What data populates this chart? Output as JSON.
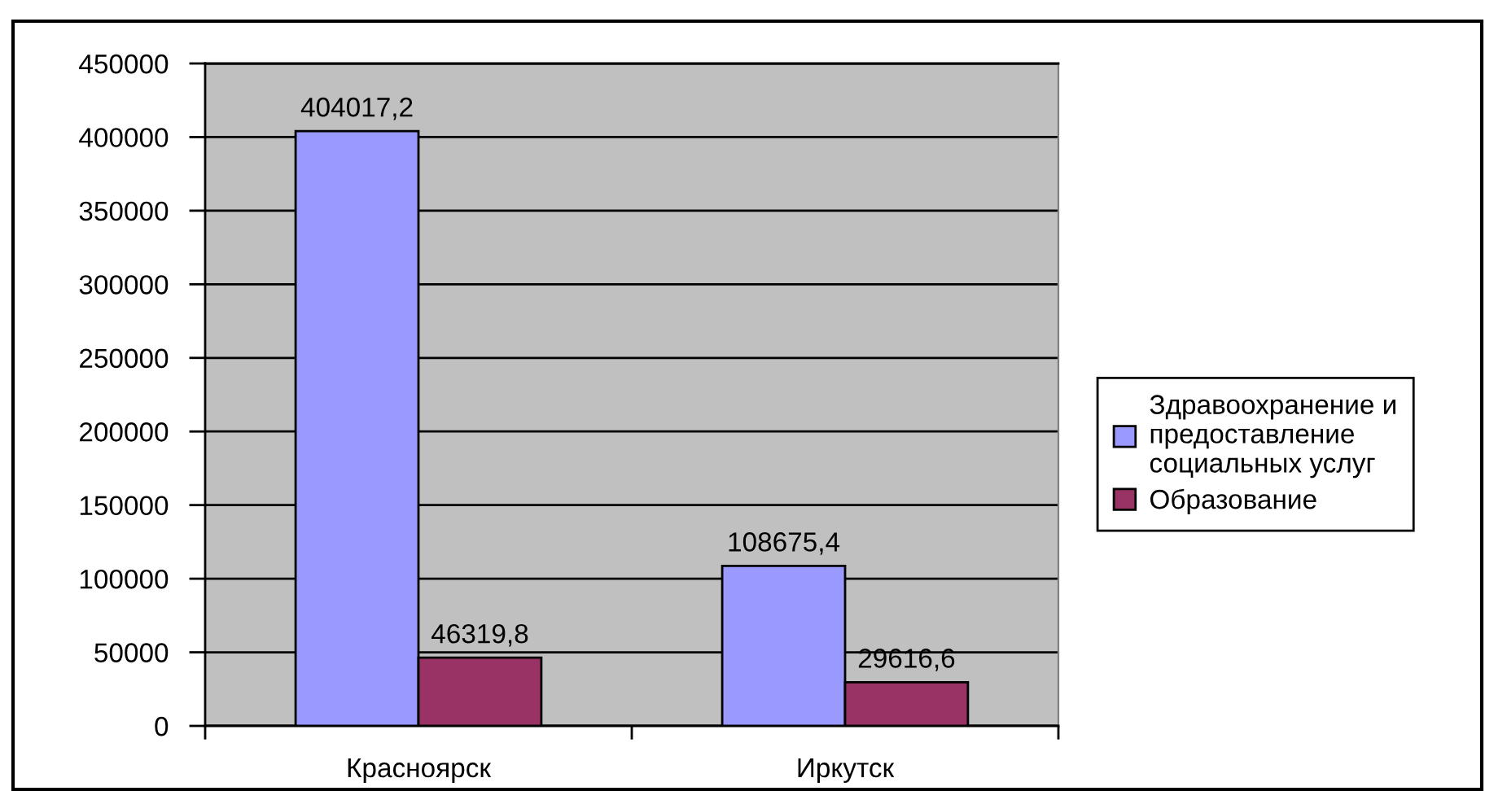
{
  "chart_data": {
    "type": "bar",
    "categories": [
      "Красноярск",
      "Иркутск"
    ],
    "series": [
      {
        "name": "Здравоохранение и\nпредоставление\nсоциальных услуг",
        "color": "#9999ff",
        "values": [
          404017.2,
          108675.4
        ],
        "value_labels": [
          "404017,2",
          "108675,4"
        ]
      },
      {
        "name": "Образование",
        "color": "#993366",
        "values": [
          46319.8,
          29616.6
        ],
        "value_labels": [
          "46319,8",
          "29616,6"
        ]
      }
    ],
    "ylim": [
      0,
      450000
    ],
    "yticks": [
      0,
      50000,
      100000,
      150000,
      200000,
      250000,
      300000,
      350000,
      400000,
      450000
    ],
    "grid": "y",
    "legend": "right"
  }
}
